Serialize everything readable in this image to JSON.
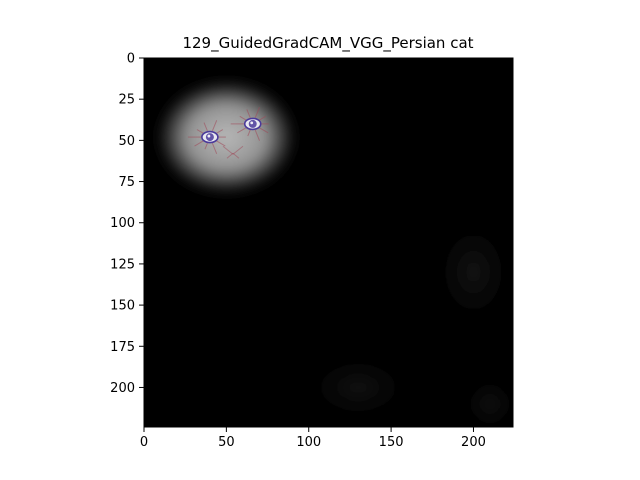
{
  "chart_data": {
    "type": "heatmap",
    "title": "129_GuidedGradCAM_VGG_Persian cat",
    "xlabel": "",
    "ylabel": "",
    "image_size": [
      224,
      224
    ],
    "xlim": [
      0,
      224
    ],
    "ylim": [
      224,
      0
    ],
    "x_ticks": [
      0,
      50,
      100,
      150,
      200
    ],
    "y_ticks": [
      0,
      25,
      50,
      75,
      100,
      125,
      150,
      175,
      200
    ],
    "grid": false,
    "colormap": "grayscale overlay",
    "hotspots": [
      {
        "x": 50,
        "y": 48,
        "rx": 44,
        "ry": 36,
        "intensity": 0.85
      },
      {
        "x": 200,
        "y": 130,
        "rx": 30,
        "ry": 40,
        "intensity": 0.08
      },
      {
        "x": 130,
        "y": 200,
        "rx": 40,
        "ry": 25,
        "intensity": 0.07
      },
      {
        "x": 210,
        "y": 210,
        "rx": 20,
        "ry": 20,
        "intensity": 0.07
      }
    ],
    "features": [
      {
        "name": "left eye",
        "x": 40,
        "y": 48
      },
      {
        "name": "right eye",
        "x": 66,
        "y": 40
      }
    ]
  },
  "colors": {
    "background": "#000000",
    "highlight": "#b4b4b4",
    "eye": "#4a3a9a",
    "whisker": "#a04858"
  }
}
